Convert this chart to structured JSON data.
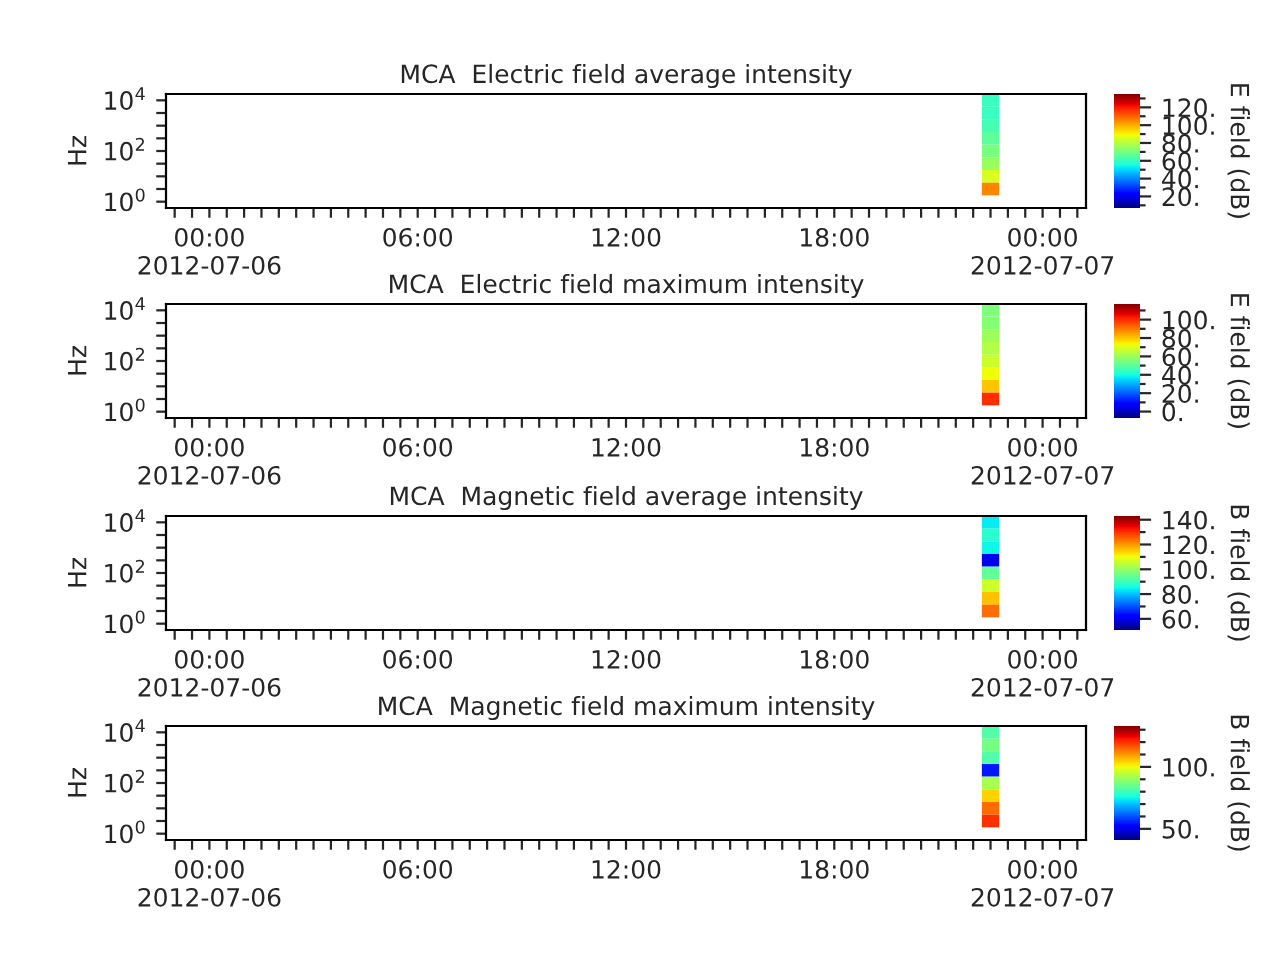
{
  "chart_data": [
    {
      "type": "heatmap",
      "title": "MCA  Electric field average intensity",
      "ylabel": "Hz",
      "clabel": "E field (dB)",
      "categories": [
        null,
        null,
        "00:00\n2012-07-06",
        null,
        null,
        null,
        null,
        null,
        null,
        null,
        null,
        null,
        null,
        null,
        "06:00",
        null,
        null,
        null,
        null,
        null,
        null,
        null,
        null,
        null,
        null,
        null,
        "12:00",
        null,
        null,
        null,
        null,
        null,
        null,
        null,
        null,
        null,
        null,
        null,
        "18:00",
        null,
        null,
        null,
        null,
        null,
        null,
        null,
        null,
        null,
        null,
        null,
        "00:00\n2012-07-07",
        null,
        null
      ],
      "y_categories": [
        "10$^{4}$",
        null,
        null,
        null,
        "10$^{2}$",
        null,
        null,
        null,
        "10$^{0}$"
      ],
      "cells": [
        [
          null,
          null,
          null,
          null,
          null,
          null,
          null,
          null,
          null,
          null,
          null,
          null,
          null,
          null,
          null,
          null,
          null,
          null,
          null,
          null,
          null,
          null,
          null,
          null,
          null,
          null,
          null,
          null,
          null,
          null,
          null,
          null,
          null,
          null,
          null,
          null,
          null,
          null,
          null,
          null,
          null,
          null,
          null,
          null,
          null,
          null,
          null,
          60,
          null,
          null,
          null,
          null,
          null
        ],
        [
          null,
          null,
          null,
          null,
          null,
          null,
          null,
          null,
          null,
          null,
          null,
          null,
          null,
          null,
          null,
          null,
          null,
          null,
          null,
          null,
          null,
          null,
          null,
          null,
          null,
          null,
          null,
          null,
          null,
          null,
          null,
          null,
          null,
          null,
          null,
          null,
          null,
          null,
          null,
          null,
          null,
          null,
          null,
          null,
          null,
          null,
          null,
          60,
          null,
          null,
          null,
          null,
          null
        ],
        [
          null,
          null,
          null,
          null,
          null,
          null,
          null,
          null,
          null,
          null,
          null,
          null,
          null,
          null,
          null,
          null,
          null,
          null,
          null,
          null,
          null,
          null,
          null,
          null,
          null,
          null,
          null,
          null,
          null,
          null,
          null,
          null,
          null,
          null,
          null,
          null,
          null,
          null,
          null,
          null,
          null,
          null,
          null,
          null,
          null,
          null,
          null,
          62,
          null,
          null,
          null,
          null,
          null
        ],
        [
          null,
          null,
          null,
          null,
          null,
          null,
          null,
          null,
          null,
          null,
          null,
          null,
          null,
          null,
          null,
          null,
          null,
          null,
          null,
          null,
          null,
          null,
          null,
          null,
          null,
          null,
          null,
          null,
          null,
          null,
          null,
          null,
          null,
          null,
          null,
          null,
          null,
          null,
          null,
          null,
          null,
          null,
          null,
          null,
          null,
          null,
          null,
          66,
          null,
          null,
          null,
          null,
          null
        ],
        [
          null,
          null,
          null,
          null,
          null,
          null,
          null,
          null,
          null,
          null,
          null,
          null,
          null,
          null,
          null,
          null,
          null,
          null,
          null,
          null,
          null,
          null,
          null,
          null,
          null,
          null,
          null,
          null,
          null,
          null,
          null,
          null,
          null,
          null,
          null,
          null,
          null,
          null,
          null,
          null,
          null,
          null,
          null,
          null,
          null,
          null,
          null,
          70,
          null,
          null,
          null,
          null,
          null
        ],
        [
          null,
          null,
          null,
          null,
          null,
          null,
          null,
          null,
          null,
          null,
          null,
          null,
          null,
          null,
          null,
          null,
          null,
          null,
          null,
          null,
          null,
          null,
          null,
          null,
          null,
          null,
          null,
          null,
          null,
          null,
          null,
          null,
          null,
          null,
          null,
          null,
          null,
          null,
          null,
          null,
          null,
          null,
          null,
          null,
          null,
          null,
          null,
          75,
          null,
          null,
          null,
          null,
          null
        ],
        [
          null,
          null,
          null,
          null,
          null,
          null,
          null,
          null,
          null,
          null,
          null,
          null,
          null,
          null,
          null,
          null,
          null,
          null,
          null,
          null,
          null,
          null,
          null,
          null,
          null,
          null,
          null,
          null,
          null,
          null,
          null,
          null,
          null,
          null,
          null,
          null,
          null,
          null,
          null,
          null,
          null,
          null,
          null,
          null,
          null,
          null,
          null,
          85,
          null,
          null,
          null,
          null,
          null
        ],
        [
          null,
          null,
          null,
          null,
          null,
          null,
          null,
          null,
          null,
          null,
          null,
          null,
          null,
          null,
          null,
          null,
          null,
          null,
          null,
          null,
          null,
          null,
          null,
          null,
          null,
          null,
          null,
          null,
          null,
          null,
          null,
          null,
          null,
          null,
          null,
          null,
          null,
          null,
          null,
          null,
          null,
          null,
          null,
          null,
          null,
          null,
          null,
          105,
          null,
          null,
          null,
          null,
          null
        ],
        [
          null,
          null,
          null,
          null,
          null,
          null,
          null,
          null,
          null,
          null,
          null,
          null,
          null,
          null,
          null,
          null,
          null,
          null,
          null,
          null,
          null,
          null,
          null,
          null,
          null,
          null,
          null,
          null,
          null,
          null,
          null,
          null,
          null,
          null,
          null,
          null,
          null,
          null,
          null,
          null,
          null,
          null,
          null,
          null,
          null,
          null,
          null,
          null,
          null,
          null,
          null,
          null,
          null
        ]
      ],
      "clim": [
        7,
        135
      ],
      "cticks": [
        {
          "value": 10,
          "label": null
        },
        {
          "value": 20,
          "label": "20."
        },
        {
          "value": 30,
          "label": null
        },
        {
          "value": 40,
          "label": "40."
        },
        {
          "value": 50,
          "label": null
        },
        {
          "value": 60,
          "label": "60."
        },
        {
          "value": 70,
          "label": null
        },
        {
          "value": 80,
          "label": "80."
        },
        {
          "value": 90,
          "label": null
        },
        {
          "value": 100,
          "label": "100."
        },
        {
          "value": 110,
          "label": null
        },
        {
          "value": 120,
          "label": "120."
        },
        {
          "value": 130,
          "label": null
        }
      ]
    },
    {
      "type": "heatmap",
      "title": "MCA  Electric field maximum intensity",
      "ylabel": "Hz",
      "clabel": "E field (dB)",
      "categories": [
        null,
        null,
        "00:00\n2012-07-06",
        null,
        null,
        null,
        null,
        null,
        null,
        null,
        null,
        null,
        null,
        null,
        "06:00",
        null,
        null,
        null,
        null,
        null,
        null,
        null,
        null,
        null,
        null,
        null,
        "12:00",
        null,
        null,
        null,
        null,
        null,
        null,
        null,
        null,
        null,
        null,
        null,
        "18:00",
        null,
        null,
        null,
        null,
        null,
        null,
        null,
        null,
        null,
        null,
        null,
        "00:00\n2012-07-07",
        null,
        null
      ],
      "y_categories": [
        "10$^{4}$",
        null,
        null,
        null,
        "10$^{2}$",
        null,
        null,
        null,
        "10$^{0}$"
      ],
      "cells": [
        [
          null,
          null,
          null,
          null,
          null,
          null,
          null,
          null,
          null,
          null,
          null,
          null,
          null,
          null,
          null,
          null,
          null,
          null,
          null,
          null,
          null,
          null,
          null,
          null,
          null,
          null,
          null,
          null,
          null,
          null,
          null,
          null,
          null,
          null,
          null,
          null,
          null,
          null,
          null,
          null,
          null,
          null,
          null,
          null,
          null,
          null,
          null,
          55,
          null,
          null,
          null,
          null,
          null
        ],
        [
          null,
          null,
          null,
          null,
          null,
          null,
          null,
          null,
          null,
          null,
          null,
          null,
          null,
          null,
          null,
          null,
          null,
          null,
          null,
          null,
          null,
          null,
          null,
          null,
          null,
          null,
          null,
          null,
          null,
          null,
          null,
          null,
          null,
          null,
          null,
          null,
          null,
          null,
          null,
          null,
          null,
          null,
          null,
          null,
          null,
          null,
          null,
          56,
          null,
          null,
          null,
          null,
          null
        ],
        [
          null,
          null,
          null,
          null,
          null,
          null,
          null,
          null,
          null,
          null,
          null,
          null,
          null,
          null,
          null,
          null,
          null,
          null,
          null,
          null,
          null,
          null,
          null,
          null,
          null,
          null,
          null,
          null,
          null,
          null,
          null,
          null,
          null,
          null,
          null,
          null,
          null,
          null,
          null,
          null,
          null,
          null,
          null,
          null,
          null,
          null,
          null,
          60,
          null,
          null,
          null,
          null,
          null
        ],
        [
          null,
          null,
          null,
          null,
          null,
          null,
          null,
          null,
          null,
          null,
          null,
          null,
          null,
          null,
          null,
          null,
          null,
          null,
          null,
          null,
          null,
          null,
          null,
          null,
          null,
          null,
          null,
          null,
          null,
          null,
          null,
          null,
          null,
          null,
          null,
          null,
          null,
          null,
          null,
          null,
          null,
          null,
          null,
          null,
          null,
          null,
          null,
          63,
          null,
          null,
          null,
          null,
          null
        ],
        [
          null,
          null,
          null,
          null,
          null,
          null,
          null,
          null,
          null,
          null,
          null,
          null,
          null,
          null,
          null,
          null,
          null,
          null,
          null,
          null,
          null,
          null,
          null,
          null,
          null,
          null,
          null,
          null,
          null,
          null,
          null,
          null,
          null,
          null,
          null,
          null,
          null,
          null,
          null,
          null,
          null,
          null,
          null,
          null,
          null,
          null,
          null,
          67,
          null,
          null,
          null,
          null,
          null
        ],
        [
          null,
          null,
          null,
          null,
          null,
          null,
          null,
          null,
          null,
          null,
          null,
          null,
          null,
          null,
          null,
          null,
          null,
          null,
          null,
          null,
          null,
          null,
          null,
          null,
          null,
          null,
          null,
          null,
          null,
          null,
          null,
          null,
          null,
          null,
          null,
          null,
          null,
          null,
          null,
          null,
          null,
          null,
          null,
          null,
          null,
          null,
          null,
          72,
          null,
          null,
          null,
          null,
          null
        ],
        [
          null,
          null,
          null,
          null,
          null,
          null,
          null,
          null,
          null,
          null,
          null,
          null,
          null,
          null,
          null,
          null,
          null,
          null,
          null,
          null,
          null,
          null,
          null,
          null,
          null,
          null,
          null,
          null,
          null,
          null,
          null,
          null,
          null,
          null,
          null,
          null,
          null,
          null,
          null,
          null,
          null,
          null,
          null,
          null,
          null,
          null,
          null,
          80,
          null,
          null,
          null,
          null,
          null
        ],
        [
          null,
          null,
          null,
          null,
          null,
          null,
          null,
          null,
          null,
          null,
          null,
          null,
          null,
          null,
          null,
          null,
          null,
          null,
          null,
          null,
          null,
          null,
          null,
          null,
          null,
          null,
          null,
          null,
          null,
          null,
          null,
          null,
          null,
          null,
          null,
          null,
          null,
          null,
          null,
          null,
          null,
          null,
          null,
          null,
          null,
          null,
          null,
          100,
          null,
          null,
          null,
          null,
          null
        ],
        [
          null,
          null,
          null,
          null,
          null,
          null,
          null,
          null,
          null,
          null,
          null,
          null,
          null,
          null,
          null,
          null,
          null,
          null,
          null,
          null,
          null,
          null,
          null,
          null,
          null,
          null,
          null,
          null,
          null,
          null,
          null,
          null,
          null,
          null,
          null,
          null,
          null,
          null,
          null,
          null,
          null,
          null,
          null,
          null,
          null,
          null,
          null,
          null,
          null,
          null,
          null,
          null,
          null
        ]
      ],
      "clim": [
        -7,
        117
      ],
      "cticks": [
        {
          "value": 0,
          "label": "0."
        },
        {
          "value": 10,
          "label": null
        },
        {
          "value": 20,
          "label": "20."
        },
        {
          "value": 30,
          "label": null
        },
        {
          "value": 40,
          "label": "40."
        },
        {
          "value": 50,
          "label": null
        },
        {
          "value": 60,
          "label": "60."
        },
        {
          "value": 70,
          "label": null
        },
        {
          "value": 80,
          "label": "80."
        },
        {
          "value": 90,
          "label": null
        },
        {
          "value": 100,
          "label": "100."
        },
        {
          "value": 110,
          "label": null
        }
      ]
    },
    {
      "type": "heatmap",
      "title": "MCA  Magnetic field average intensity",
      "ylabel": "Hz",
      "clabel": "B field (dB)",
      "categories": [
        null,
        null,
        "00:00\n2012-07-06",
        null,
        null,
        null,
        null,
        null,
        null,
        null,
        null,
        null,
        null,
        null,
        "06:00",
        null,
        null,
        null,
        null,
        null,
        null,
        null,
        null,
        null,
        null,
        null,
        "12:00",
        null,
        null,
        null,
        null,
        null,
        null,
        null,
        null,
        null,
        null,
        null,
        "18:00",
        null,
        null,
        null,
        null,
        null,
        null,
        null,
        null,
        null,
        null,
        null,
        "00:00\n2012-07-07",
        null,
        null
      ],
      "y_categories": [
        "10$^{4}$",
        null,
        null,
        null,
        "10$^{2}$",
        null,
        null,
        null,
        "10$^{0}$"
      ],
      "cells": [
        [
          null,
          null,
          null,
          null,
          null,
          null,
          null,
          null,
          null,
          null,
          null,
          null,
          null,
          null,
          null,
          null,
          null,
          null,
          null,
          null,
          null,
          null,
          null,
          null,
          null,
          null,
          null,
          null,
          null,
          null,
          null,
          null,
          null,
          null,
          null,
          null,
          null,
          null,
          null,
          null,
          null,
          null,
          null,
          null,
          null,
          null,
          null,
          84,
          null,
          null,
          null,
          null,
          null
        ],
        [
          null,
          null,
          null,
          null,
          null,
          null,
          null,
          null,
          null,
          null,
          null,
          null,
          null,
          null,
          null,
          null,
          null,
          null,
          null,
          null,
          null,
          null,
          null,
          null,
          null,
          null,
          null,
          null,
          null,
          null,
          null,
          null,
          null,
          null,
          null,
          null,
          null,
          null,
          null,
          null,
          null,
          null,
          null,
          null,
          null,
          null,
          null,
          88,
          null,
          null,
          null,
          null,
          null
        ],
        [
          null,
          null,
          null,
          null,
          null,
          null,
          null,
          null,
          null,
          null,
          null,
          null,
          null,
          null,
          null,
          null,
          null,
          null,
          null,
          null,
          null,
          null,
          null,
          null,
          null,
          null,
          null,
          null,
          null,
          null,
          null,
          null,
          null,
          null,
          null,
          null,
          null,
          null,
          null,
          null,
          null,
          null,
          null,
          null,
          null,
          null,
          null,
          85,
          null,
          null,
          null,
          null,
          null
        ],
        [
          null,
          null,
          null,
          null,
          null,
          null,
          null,
          null,
          null,
          null,
          null,
          null,
          null,
          null,
          null,
          null,
          null,
          null,
          null,
          null,
          null,
          null,
          null,
          null,
          null,
          null,
          null,
          null,
          null,
          null,
          null,
          null,
          null,
          null,
          null,
          null,
          null,
          null,
          null,
          null,
          null,
          null,
          null,
          null,
          null,
          null,
          null,
          60,
          null,
          null,
          null,
          null,
          null
        ],
        [
          null,
          null,
          null,
          null,
          null,
          null,
          null,
          null,
          null,
          null,
          null,
          null,
          null,
          null,
          null,
          null,
          null,
          null,
          null,
          null,
          null,
          null,
          null,
          null,
          null,
          null,
          null,
          null,
          null,
          null,
          null,
          null,
          null,
          null,
          null,
          null,
          null,
          null,
          null,
          null,
          null,
          null,
          null,
          null,
          null,
          null,
          null,
          94,
          null,
          null,
          null,
          null,
          null
        ],
        [
          null,
          null,
          null,
          null,
          null,
          null,
          null,
          null,
          null,
          null,
          null,
          null,
          null,
          null,
          null,
          null,
          null,
          null,
          null,
          null,
          null,
          null,
          null,
          null,
          null,
          null,
          null,
          null,
          null,
          null,
          null,
          null,
          null,
          null,
          null,
          null,
          null,
          null,
          null,
          null,
          null,
          null,
          null,
          null,
          null,
          null,
          null,
          106,
          null,
          null,
          null,
          null,
          null
        ],
        [
          null,
          null,
          null,
          null,
          null,
          null,
          null,
          null,
          null,
          null,
          null,
          null,
          null,
          null,
          null,
          null,
          null,
          null,
          null,
          null,
          null,
          null,
          null,
          null,
          null,
          null,
          null,
          null,
          null,
          null,
          null,
          null,
          null,
          null,
          null,
          null,
          null,
          null,
          null,
          null,
          null,
          null,
          null,
          null,
          null,
          null,
          null,
          116,
          null,
          null,
          null,
          null,
          null
        ],
        [
          null,
          null,
          null,
          null,
          null,
          null,
          null,
          null,
          null,
          null,
          null,
          null,
          null,
          null,
          null,
          null,
          null,
          null,
          null,
          null,
          null,
          null,
          null,
          null,
          null,
          null,
          null,
          null,
          null,
          null,
          null,
          null,
          null,
          null,
          null,
          null,
          null,
          null,
          null,
          null,
          null,
          null,
          null,
          null,
          null,
          null,
          null,
          124,
          null,
          null,
          null,
          null,
          null
        ],
        [
          null,
          null,
          null,
          null,
          null,
          null,
          null,
          null,
          null,
          null,
          null,
          null,
          null,
          null,
          null,
          null,
          null,
          null,
          null,
          null,
          null,
          null,
          null,
          null,
          null,
          null,
          null,
          null,
          null,
          null,
          null,
          null,
          null,
          null,
          null,
          null,
          null,
          null,
          null,
          null,
          null,
          null,
          null,
          null,
          null,
          null,
          null,
          null,
          null,
          null,
          null,
          null,
          null
        ]
      ],
      "clim": [
        51,
        143
      ],
      "cticks": [
        {
          "value": 60,
          "label": "60."
        },
        {
          "value": 70,
          "label": null
        },
        {
          "value": 80,
          "label": "80."
        },
        {
          "value": 90,
          "label": null
        },
        {
          "value": 100,
          "label": "100."
        },
        {
          "value": 110,
          "label": null
        },
        {
          "value": 120,
          "label": "120."
        },
        {
          "value": 130,
          "label": null
        },
        {
          "value": 140,
          "label": "140."
        }
      ]
    },
    {
      "type": "heatmap",
      "title": "MCA  Magnetic field maximum intensity",
      "ylabel": "Hz",
      "clabel": "B field (dB)",
      "categories": [
        null,
        null,
        "00:00\n2012-07-06",
        null,
        null,
        null,
        null,
        null,
        null,
        null,
        null,
        null,
        null,
        null,
        "06:00",
        null,
        null,
        null,
        null,
        null,
        null,
        null,
        null,
        null,
        null,
        null,
        "12:00",
        null,
        null,
        null,
        null,
        null,
        null,
        null,
        null,
        null,
        null,
        null,
        "18:00",
        null,
        null,
        null,
        null,
        null,
        null,
        null,
        null,
        null,
        null,
        null,
        "00:00\n2012-07-07",
        null,
        null
      ],
      "y_categories": [
        "10$^{4}$",
        null,
        null,
        null,
        "10$^{2}$",
        null,
        null,
        null,
        "10$^{0}$"
      ],
      "cells": [
        [
          null,
          null,
          null,
          null,
          null,
          null,
          null,
          null,
          null,
          null,
          null,
          null,
          null,
          null,
          null,
          null,
          null,
          null,
          null,
          null,
          null,
          null,
          null,
          null,
          null,
          null,
          null,
          null,
          null,
          null,
          null,
          null,
          null,
          null,
          null,
          null,
          null,
          null,
          null,
          null,
          null,
          null,
          null,
          null,
          null,
          null,
          null,
          82,
          null,
          null,
          null,
          null,
          null
        ],
        [
          null,
          null,
          null,
          null,
          null,
          null,
          null,
          null,
          null,
          null,
          null,
          null,
          null,
          null,
          null,
          null,
          null,
          null,
          null,
          null,
          null,
          null,
          null,
          null,
          null,
          null,
          null,
          null,
          null,
          null,
          null,
          null,
          null,
          null,
          null,
          null,
          null,
          null,
          null,
          null,
          null,
          null,
          null,
          null,
          null,
          null,
          null,
          86,
          null,
          null,
          null,
          null,
          null
        ],
        [
          null,
          null,
          null,
          null,
          null,
          null,
          null,
          null,
          null,
          null,
          null,
          null,
          null,
          null,
          null,
          null,
          null,
          null,
          null,
          null,
          null,
          null,
          null,
          null,
          null,
          null,
          null,
          null,
          null,
          null,
          null,
          null,
          null,
          null,
          null,
          null,
          null,
          null,
          null,
          null,
          null,
          null,
          null,
          null,
          null,
          null,
          null,
          82,
          null,
          null,
          null,
          null,
          null
        ],
        [
          null,
          null,
          null,
          null,
          null,
          null,
          null,
          null,
          null,
          null,
          null,
          null,
          null,
          null,
          null,
          null,
          null,
          null,
          null,
          null,
          null,
          null,
          null,
          null,
          null,
          null,
          null,
          null,
          null,
          null,
          null,
          null,
          null,
          null,
          null,
          null,
          null,
          null,
          null,
          null,
          null,
          null,
          null,
          null,
          null,
          null,
          null,
          55,
          null,
          null,
          null,
          null,
          null
        ],
        [
          null,
          null,
          null,
          null,
          null,
          null,
          null,
          null,
          null,
          null,
          null,
          null,
          null,
          null,
          null,
          null,
          null,
          null,
          null,
          null,
          null,
          null,
          null,
          null,
          null,
          null,
          null,
          null,
          null,
          null,
          null,
          null,
          null,
          null,
          null,
          null,
          null,
          null,
          null,
          null,
          null,
          null,
          null,
          null,
          null,
          null,
          null,
          92,
          null,
          null,
          null,
          null,
          null
        ],
        [
          null,
          null,
          null,
          null,
          null,
          null,
          null,
          null,
          null,
          null,
          null,
          null,
          null,
          null,
          null,
          null,
          null,
          null,
          null,
          null,
          null,
          null,
          null,
          null,
          null,
          null,
          null,
          null,
          null,
          null,
          null,
          null,
          null,
          null,
          null,
          null,
          null,
          null,
          null,
          null,
          null,
          null,
          null,
          null,
          null,
          null,
          null,
          104,
          null,
          null,
          null,
          null,
          null
        ],
        [
          null,
          null,
          null,
          null,
          null,
          null,
          null,
          null,
          null,
          null,
          null,
          null,
          null,
          null,
          null,
          null,
          null,
          null,
          null,
          null,
          null,
          null,
          null,
          null,
          null,
          null,
          null,
          null,
          null,
          null,
          null,
          null,
          null,
          null,
          null,
          null,
          null,
          null,
          null,
          null,
          null,
          null,
          null,
          null,
          null,
          null,
          null,
          114,
          null,
          null,
          null,
          null,
          null
        ],
        [
          null,
          null,
          null,
          null,
          null,
          null,
          null,
          null,
          null,
          null,
          null,
          null,
          null,
          null,
          null,
          null,
          null,
          null,
          null,
          null,
          null,
          null,
          null,
          null,
          null,
          null,
          null,
          null,
          null,
          null,
          null,
          null,
          null,
          null,
          null,
          null,
          null,
          null,
          null,
          null,
          null,
          null,
          null,
          null,
          null,
          null,
          null,
          120,
          null,
          null,
          null,
          null,
          null
        ],
        [
          null,
          null,
          null,
          null,
          null,
          null,
          null,
          null,
          null,
          null,
          null,
          null,
          null,
          null,
          null,
          null,
          null,
          null,
          null,
          null,
          null,
          null,
          null,
          null,
          null,
          null,
          null,
          null,
          null,
          null,
          null,
          null,
          null,
          null,
          null,
          null,
          null,
          null,
          null,
          null,
          null,
          null,
          null,
          null,
          null,
          null,
          null,
          null,
          null,
          null,
          null,
          null,
          null
        ]
      ],
      "clim": [
        41,
        133
      ],
      "cticks": [
        {
          "value": 50,
          "label": "50."
        },
        {
          "value": 60,
          "label": null
        },
        {
          "value": 70,
          "label": null
        },
        {
          "value": 80,
          "label": null
        },
        {
          "value": 90,
          "label": null
        },
        {
          "value": 100,
          "label": "100."
        },
        {
          "value": 110,
          "label": null
        },
        {
          "value": 120,
          "label": null
        },
        {
          "value": 130,
          "label": null
        }
      ]
    }
  ]
}
